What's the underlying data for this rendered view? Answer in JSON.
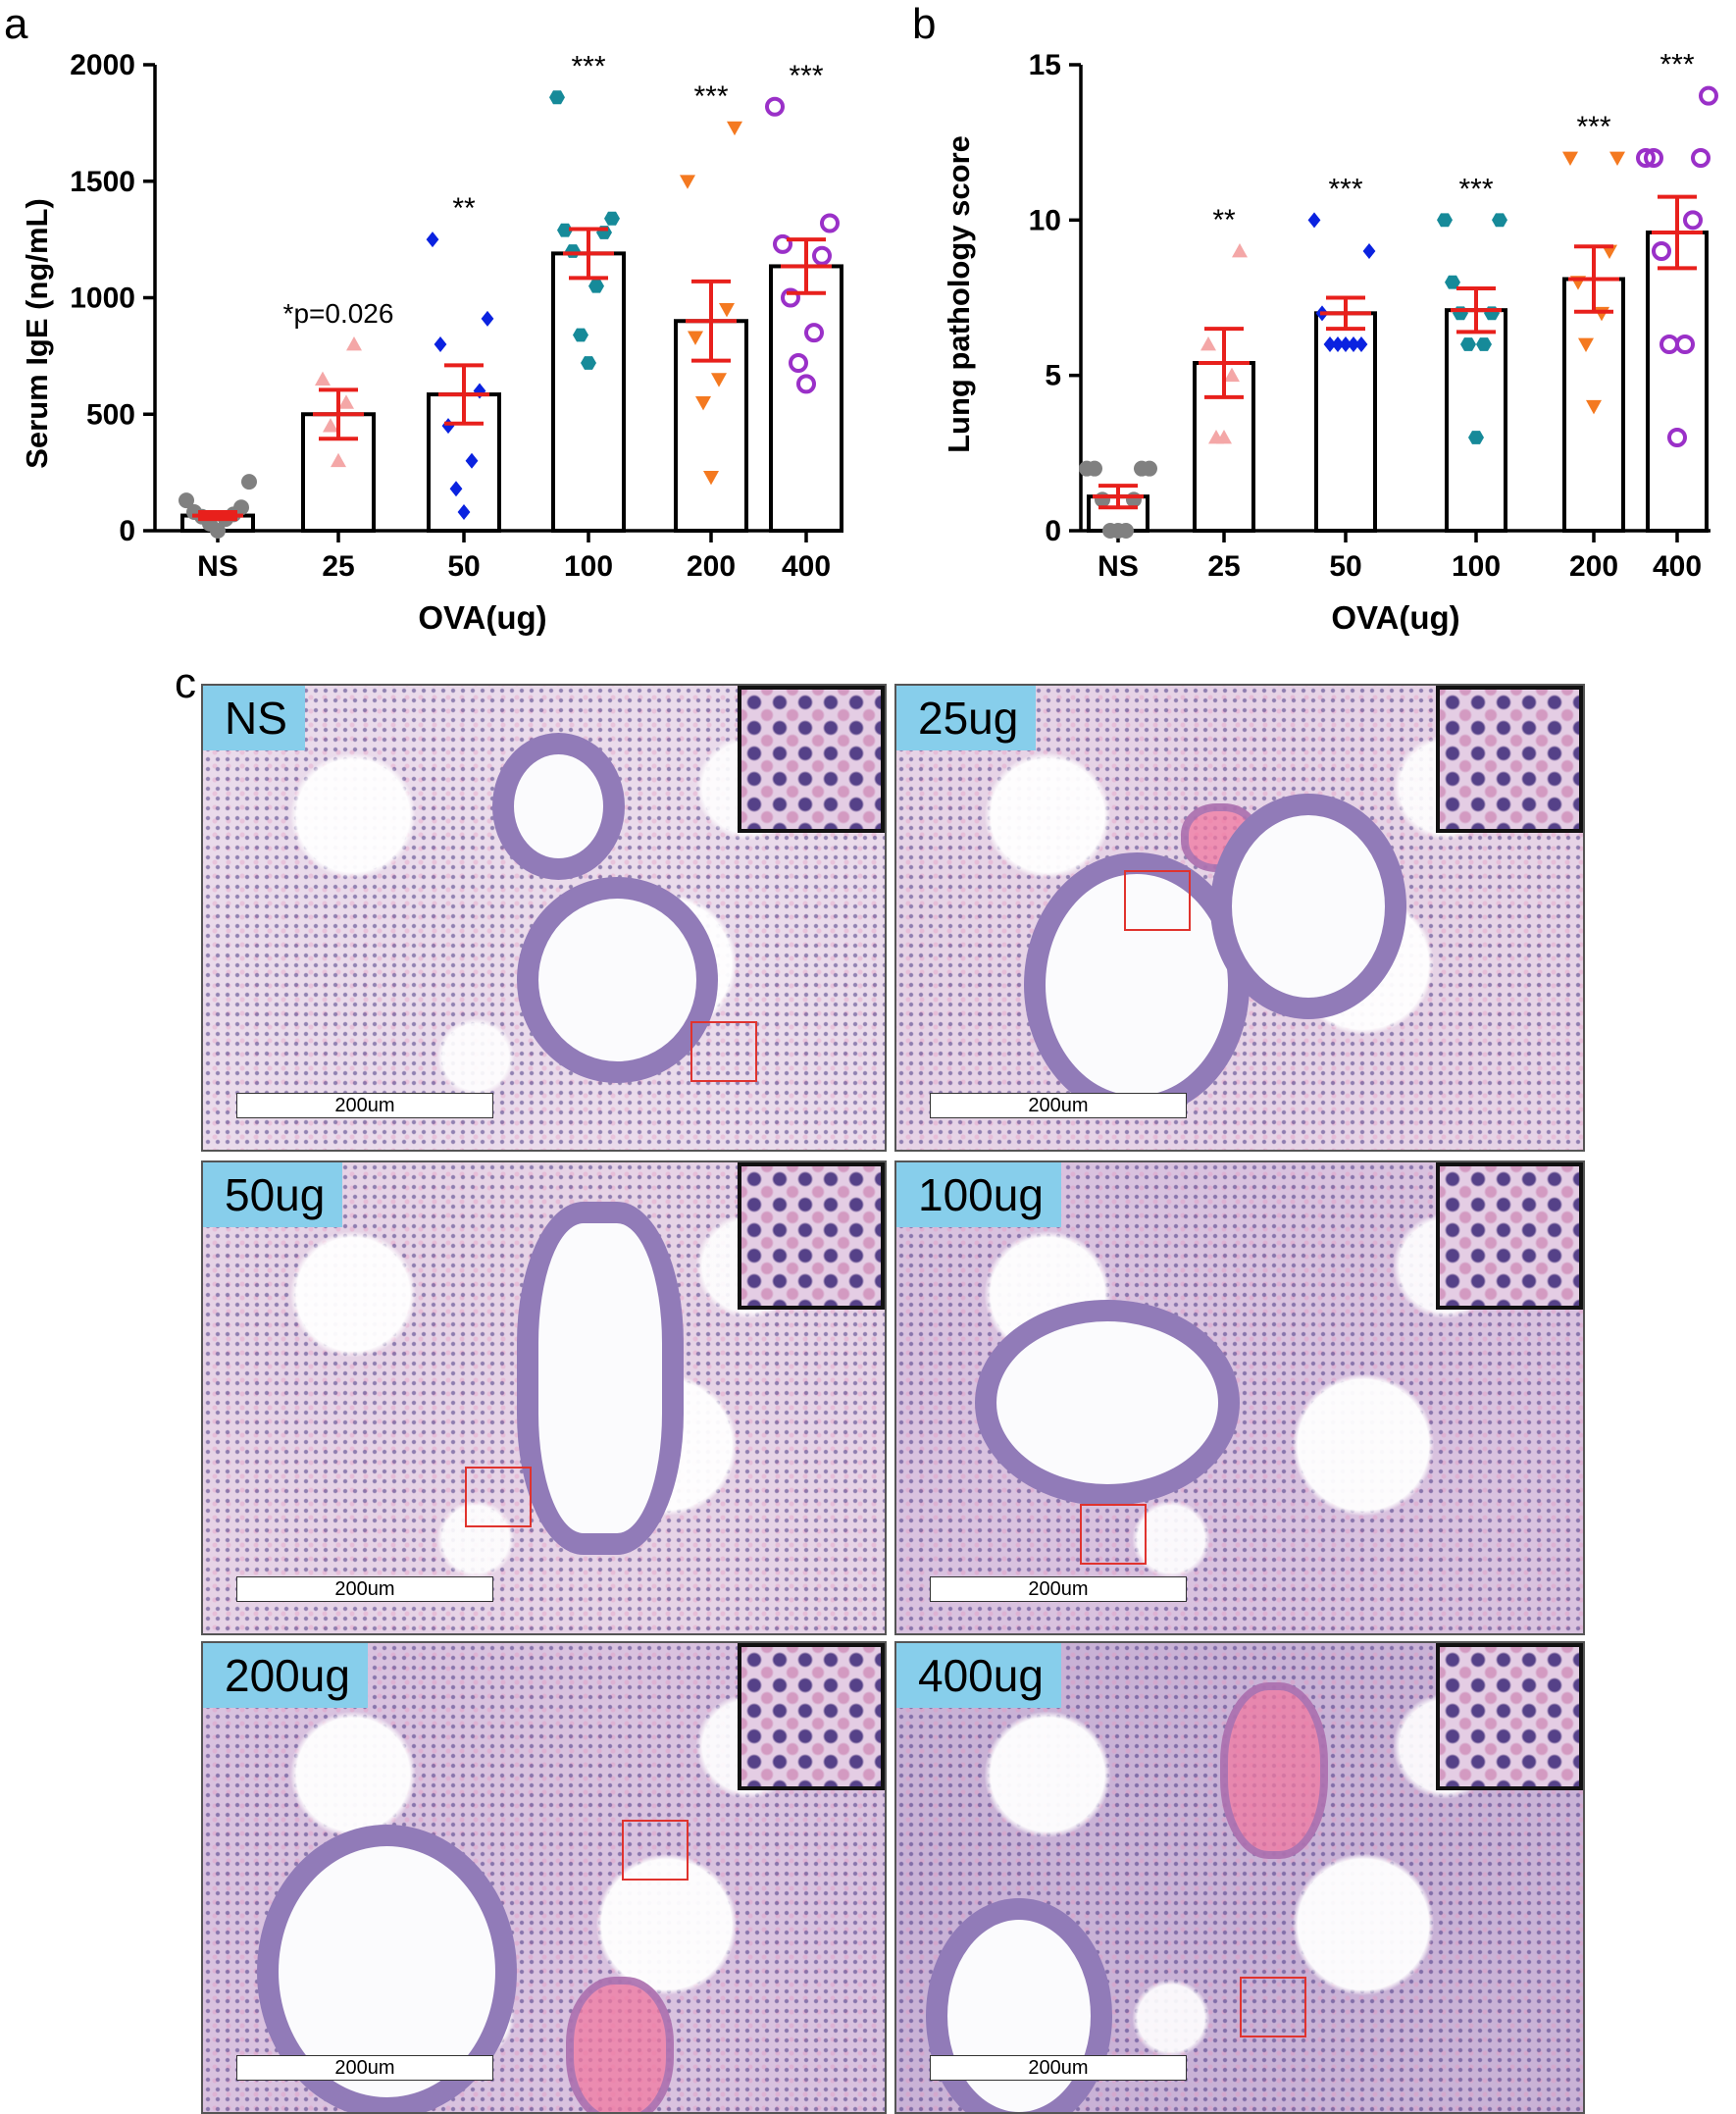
{
  "panel_letters": {
    "a": "a",
    "b": "b",
    "c": "c"
  },
  "chart_data": [
    {
      "type": "bar",
      "panel": "a",
      "categories": [
        "NS",
        "25",
        "50",
        "100",
        "200",
        "400"
      ],
      "values": [
        65,
        500,
        585,
        1190,
        900,
        1135
      ],
      "errors": [
        15,
        105,
        125,
        105,
        170,
        115
      ],
      "points": [
        [
          0,
          30,
          50,
          60,
          70,
          80,
          100,
          130,
          210
        ],
        [
          300,
          450,
          550,
          650,
          800
        ],
        [
          80,
          180,
          300,
          450,
          600,
          800,
          910,
          1250
        ],
        [
          720,
          840,
          1050,
          1200,
          1280,
          1290,
          1340,
          1860
        ],
        [
          230,
          550,
          650,
          830,
          950,
          1500,
          1730
        ],
        [
          630,
          720,
          850,
          1000,
          1180,
          1230,
          1320,
          1820
        ]
      ],
      "annotations": [
        "",
        "*p=0.026",
        "**",
        "***",
        "***",
        "***"
      ],
      "xlabel": "OVA(ug)",
      "ylabel": "Serum IgE (ng/mL)",
      "ylim": [
        0,
        2000
      ],
      "yticks": [
        "0",
        "500",
        "1000",
        "1500",
        "2000"
      ]
    },
    {
      "type": "bar",
      "panel": "b",
      "categories": [
        "NS",
        "25",
        "50",
        "100",
        "200",
        "400"
      ],
      "values": [
        1.1,
        5.4,
        7.0,
        7.1,
        8.1,
        9.6
      ],
      "errors": [
        0.35,
        1.1,
        0.5,
        0.7,
        1.05,
        1.15
      ],
      "points": [
        [
          0,
          0,
          0,
          1,
          1,
          2,
          2,
          2,
          2
        ],
        [
          3,
          3,
          5,
          6,
          9
        ],
        [
          6,
          6,
          6,
          6,
          6,
          7,
          9,
          10
        ],
        [
          3,
          6,
          6,
          7,
          7,
          8,
          10,
          10
        ],
        [
          4,
          6,
          7,
          8,
          9,
          12,
          12
        ],
        [
          3,
          6,
          6,
          9,
          10,
          12,
          12,
          12,
          14
        ]
      ],
      "annotations": [
        "",
        "**",
        "***",
        "***",
        "***",
        "***"
      ],
      "xlabel": "OVA(ug)",
      "ylabel": "Lung pathology score",
      "ylim": [
        0,
        15
      ],
      "yticks": [
        "0",
        "5",
        "10",
        "15"
      ]
    }
  ],
  "series_colors": [
    "#808080",
    "#f4a7a7",
    "#0a22e0",
    "#168a99",
    "#f47920",
    "#9a30c8"
  ],
  "series_markers": [
    "circle",
    "triangle-up",
    "diamond",
    "hexagon",
    "triangle-down",
    "open-circle"
  ],
  "error_color": "#e8201c",
  "micrographs": [
    {
      "label": "NS",
      "scale_bar": "200um"
    },
    {
      "label": "25ug",
      "scale_bar": "200um"
    },
    {
      "label": "50ug",
      "scale_bar": "200um"
    },
    {
      "label": "100ug",
      "scale_bar": "200um"
    },
    {
      "label": "200ug",
      "scale_bar": "200um"
    },
    {
      "label": "400ug",
      "scale_bar": "200um"
    }
  ]
}
